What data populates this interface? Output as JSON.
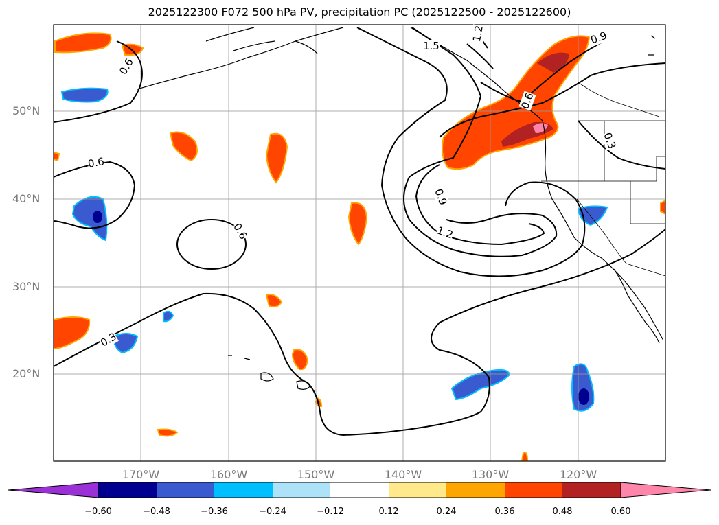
{
  "title": "2025122300 F072 500 hPa PV, precipitation PC (2025122500 - 2025122600)",
  "lat_labels": [
    "50°N",
    "40°N",
    "30°N",
    "20°N"
  ],
  "lon_labels": [
    "170°W",
    "160°W",
    "150°W",
    "140°W",
    "130°W",
    "120°W"
  ],
  "contour_labels": [
    "0.6",
    "0.6",
    "0.6",
    "0.3",
    "0.9",
    "1.2",
    "0.9",
    "1.2",
    "1.5",
    "0.6",
    "0.3"
  ],
  "colorbar": {
    "ticks": [
      "−0.60",
      "−0.48",
      "−0.36",
      "−0.24",
      "−0.12",
      "0.12",
      "0.24",
      "0.36",
      "0.48",
      "0.60"
    ],
    "colors": {
      "lt_neg": "#9b30d9",
      "n60": "#000090",
      "n48": "#3a5bd0",
      "n36": "#00bfff",
      "n24": "#aee2f8",
      "zero": "#ffffff",
      "p12": "#ffe98a",
      "p24": "#ffa500",
      "p36": "#ff4500",
      "p48": "#b22222",
      "gt_60": "#ff85aa"
    }
  }
}
